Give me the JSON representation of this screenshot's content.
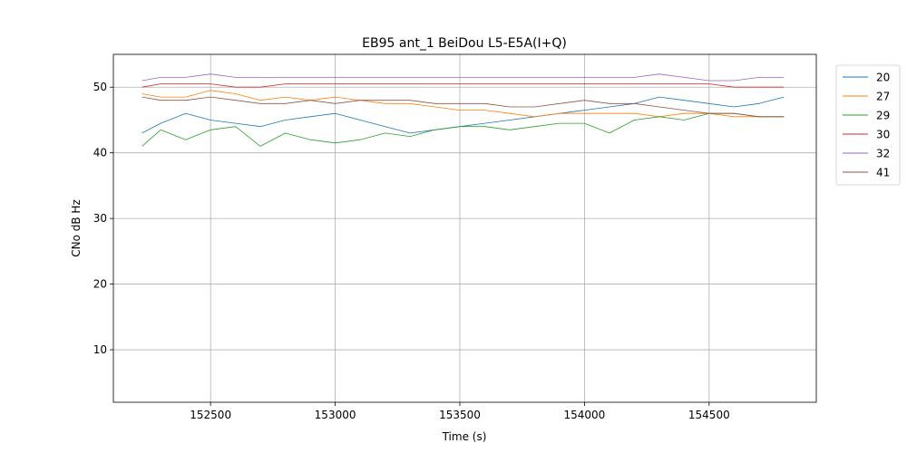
{
  "chart_data": {
    "type": "line",
    "title": "EB95 ant_1 BeiDou L5-E5A(I+Q)",
    "xlabel": "Time (s)",
    "ylabel": "CNo dB Hz",
    "xlim": [
      152110,
      154930
    ],
    "ylim": [
      2,
      55
    ],
    "xticks": [
      152500,
      153000,
      153500,
      154000,
      154500
    ],
    "xtick_labels": [
      "152500",
      "153000",
      "153500",
      "154000",
      "154500"
    ],
    "yticks": [
      10,
      20,
      30,
      40,
      50
    ],
    "ytick_labels": [
      "10",
      "20",
      "30",
      "40",
      "50"
    ],
    "grid": true,
    "legend_position": "outside-top-right",
    "x": [
      152225,
      152300,
      152400,
      152500,
      152600,
      152700,
      152800,
      152900,
      153000,
      153100,
      153200,
      153300,
      153400,
      153500,
      153600,
      153700,
      153800,
      153900,
      154000,
      154100,
      154200,
      154300,
      154400,
      154500,
      154600,
      154700,
      154800
    ],
    "series": [
      {
        "name": "20",
        "color": "#1f77b4",
        "values": [
          43.0,
          44.5,
          46.0,
          45.0,
          44.5,
          44.0,
          45.0,
          45.5,
          46.0,
          45.0,
          44.0,
          43.0,
          43.5,
          44.0,
          44.5,
          45.0,
          45.5,
          46.0,
          46.5,
          47.0,
          47.5,
          48.5,
          48.0,
          47.5,
          47.0,
          47.5,
          48.5
        ]
      },
      {
        "name": "27",
        "color": "#ff7f0e",
        "values": [
          49.0,
          48.5,
          48.5,
          49.5,
          49.0,
          48.0,
          48.5,
          48.0,
          48.5,
          48.0,
          47.5,
          47.5,
          47.0,
          46.5,
          46.5,
          46.0,
          45.5,
          46.0,
          46.0,
          46.0,
          46.0,
          45.5,
          46.0,
          46.0,
          45.5,
          45.5,
          45.5
        ]
      },
      {
        "name": "29",
        "color": "#2ca02c",
        "values": [
          41.0,
          43.5,
          42.0,
          43.5,
          44.0,
          41.0,
          43.0,
          42.0,
          41.5,
          42.0,
          43.0,
          42.5,
          43.5,
          44.0,
          44.0,
          43.5,
          44.0,
          44.5,
          44.5,
          43.0,
          45.0,
          45.5,
          45.0,
          46.0,
          46.0,
          45.5,
          45.5
        ]
      },
      {
        "name": "30",
        "color": "#d62728",
        "values": [
          50.0,
          50.5,
          50.5,
          50.5,
          50.0,
          50.0,
          50.5,
          50.5,
          50.5,
          50.5,
          50.5,
          50.5,
          50.5,
          50.5,
          50.5,
          50.5,
          50.5,
          50.5,
          50.5,
          50.5,
          50.5,
          50.5,
          50.5,
          50.5,
          50.0,
          50.0,
          50.0
        ]
      },
      {
        "name": "32",
        "color": "#9467bd",
        "values": [
          51.0,
          51.5,
          51.5,
          52.0,
          51.5,
          51.5,
          51.5,
          51.5,
          51.5,
          51.5,
          51.5,
          51.5,
          51.5,
          51.5,
          51.5,
          51.5,
          51.5,
          51.5,
          51.5,
          51.5,
          51.5,
          52.0,
          51.5,
          51.0,
          51.0,
          51.5,
          51.5
        ]
      },
      {
        "name": "41",
        "color": "#8c564b",
        "values": [
          48.5,
          48.0,
          48.0,
          48.5,
          48.0,
          47.5,
          47.5,
          48.0,
          47.5,
          48.0,
          48.0,
          48.0,
          47.5,
          47.5,
          47.5,
          47.0,
          47.0,
          47.5,
          48.0,
          47.5,
          47.5,
          47.0,
          46.5,
          46.0,
          46.0,
          45.5,
          45.5
        ]
      }
    ]
  }
}
